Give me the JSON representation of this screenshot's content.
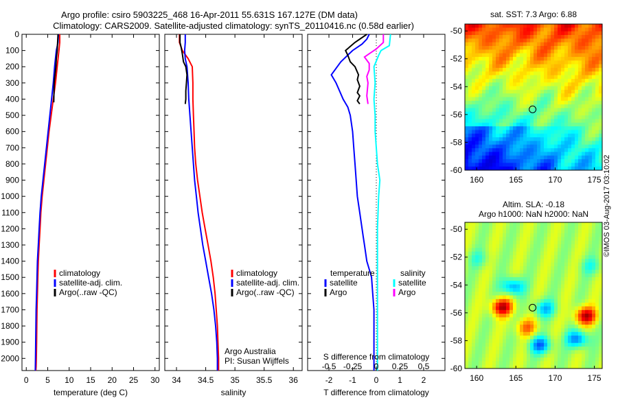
{
  "title": {
    "line1": "Argo profile: csiro 5903225_468 16-Apr-2011 55.631S 167.127E (DM data)",
    "line2": "Climatology: CARS2009. Satellite-adjusted climatology: synTS_20110416.nc (0.58d earlier)"
  },
  "side_text": "©IMOS 03-Aug-2017 03:10:02",
  "colors": {
    "climatology": "#ff0000",
    "satellite": "#0000ff",
    "argo": "#000000",
    "salinity_sat": "#00ffff",
    "salinity_argo": "#ff00ff"
  },
  "chart_data": [
    {
      "id": "temperature",
      "type": "line",
      "xlabel": "temperature (deg C)",
      "ylabel": "",
      "xlim": [
        -1,
        31
      ],
      "ylim": [
        2075,
        0
      ],
      "xticks": [
        0,
        5,
        10,
        15,
        20,
        25,
        30
      ],
      "yticks": [
        0,
        100,
        200,
        300,
        400,
        500,
        600,
        700,
        800,
        900,
        1000,
        1100,
        1200,
        1300,
        1400,
        1500,
        1600,
        1700,
        1800,
        1900,
        2000
      ],
      "legend": [
        "climatology",
        "satellite-adj. clim.",
        "Argo(..raw -QC)"
      ],
      "series": [
        {
          "name": "climatology",
          "color": "#ff0000",
          "x": [
            7.8,
            7.8,
            7.6,
            7.2,
            6.8,
            6.3,
            5.8,
            5.3,
            4.9,
            4.5,
            4.1,
            3.7,
            3.4,
            3.2,
            3.0,
            2.8,
            2.7,
            2.6,
            2.5,
            2.45,
            2.4,
            2.35,
            2.3,
            2.25,
            2.2
          ],
          "y": [
            0,
            50,
            100,
            200,
            300,
            400,
            500,
            600,
            700,
            800,
            900,
            1000,
            1100,
            1200,
            1300,
            1400,
            1500,
            1600,
            1700,
            1800,
            1900,
            2000,
            2050,
            2070,
            2075
          ]
        },
        {
          "name": "satellite-adj. clim.",
          "color": "#0000ff",
          "x": [
            7.5,
            7.4,
            7.0,
            6.6,
            6.3,
            5.9,
            5.5,
            5.1,
            4.7,
            4.3,
            3.9,
            3.5,
            3.2,
            3.0,
            2.8,
            2.6,
            2.5,
            2.4,
            2.3,
            2.25,
            2.2,
            2.15,
            2.1
          ],
          "y": [
            0,
            50,
            100,
            200,
            300,
            400,
            500,
            600,
            700,
            800,
            900,
            1000,
            1100,
            1200,
            1300,
            1400,
            1500,
            1600,
            1700,
            1800,
            1900,
            2000,
            2075
          ]
        },
        {
          "name": "Argo(..raw -QC)",
          "color": "#000000",
          "x": [
            7.4,
            7.3,
            7.2,
            7.0,
            6.9,
            6.7,
            6.5,
            6.4
          ],
          "y": [
            0,
            50,
            100,
            150,
            200,
            250,
            300,
            420
          ]
        }
      ]
    },
    {
      "id": "salinity",
      "type": "line",
      "xlabel": "salinity",
      "ylabel": "",
      "xlim": [
        33.8,
        36.15
      ],
      "ylim": [
        2075,
        0
      ],
      "xticks": [
        34,
        34.5,
        35,
        35.5,
        36
      ],
      "xticklabels": [
        "34",
        "34.5",
        "35",
        "35.5",
        "36"
      ],
      "legend": [
        "climatology",
        "satellite-adj. clim.",
        "Argo(..raw -QC)"
      ],
      "annotations": [
        "Argo Australia",
        "PI: Susan Wijffels"
      ],
      "series": [
        {
          "name": "climatology",
          "color": "#ff0000",
          "x": [
            34.05,
            34.05,
            34.1,
            34.2,
            34.27,
            34.28,
            34.28,
            34.29,
            34.3,
            34.31,
            34.33,
            34.36,
            34.4,
            34.44,
            34.49,
            34.54,
            34.59,
            34.63,
            34.66,
            34.68,
            34.7,
            34.71,
            34.72,
            34.72
          ],
          "y": [
            0,
            50,
            100,
            150,
            200,
            300,
            400,
            500,
            600,
            700,
            800,
            900,
            1000,
            1100,
            1200,
            1300,
            1400,
            1500,
            1600,
            1700,
            1800,
            1900,
            2000,
            2075
          ]
        },
        {
          "name": "satellite-adj. clim.",
          "color": "#0000ff",
          "x": [
            34.15,
            34.15,
            34.14,
            34.15,
            34.18,
            34.2,
            34.21,
            34.23,
            34.25,
            34.27,
            34.29,
            34.31,
            34.34,
            34.37,
            34.41,
            34.45,
            34.5,
            34.55,
            34.6,
            34.64,
            34.67,
            34.69,
            34.7,
            34.7
          ],
          "y": [
            0,
            50,
            100,
            150,
            200,
            300,
            400,
            500,
            600,
            700,
            800,
            900,
            1000,
            1100,
            1200,
            1300,
            1400,
            1500,
            1600,
            1700,
            1800,
            1900,
            2000,
            2075
          ]
        },
        {
          "name": "Argo(..raw -QC)",
          "color": "#000000",
          "x": [
            34.06,
            34.06,
            34.08,
            34.1,
            34.12,
            34.16,
            34.18,
            34.17,
            34.16,
            34.16,
            34.15
          ],
          "y": [
            0,
            50,
            80,
            120,
            170,
            200,
            250,
            300,
            350,
            400,
            430
          ]
        }
      ]
    },
    {
      "id": "difference",
      "type": "line",
      "xlabel": "T difference from climatology",
      "xlabel_top": "S difference from climatology",
      "xlim": [
        -2.9,
        2.9
      ],
      "ylim": [
        2075,
        0
      ],
      "xticks": [
        -2,
        -1,
        0,
        1,
        2
      ],
      "xticklabels": [
        "-2",
        "-1",
        "0",
        "1",
        "2"
      ],
      "s_ticks": [
        -0.5,
        -0.25,
        0,
        0.25,
        0.5
      ],
      "s_ticklabels": [
        "-0.5",
        "-0.25",
        "0",
        "0.25",
        "0.5"
      ],
      "legend_temperature_title": "temperature",
      "legend_salinity_title": "salinity",
      "legend": [
        "satellite",
        "Argo",
        "satellite",
        "Argo"
      ],
      "series": [
        {
          "name": "satellite",
          "quantity": "temperature",
          "color": "#0000ff",
          "x": [
            -0.3,
            -0.4,
            -0.6,
            -1.0,
            -1.5,
            -1.9,
            -1.7,
            -1.4,
            -1.2,
            -1.1,
            -1.0,
            -0.95,
            -0.9,
            -0.85,
            -0.8,
            -0.7,
            -0.6,
            -0.55,
            -0.5,
            -0.45,
            -0.4,
            -0.3,
            -0.2,
            -0.15,
            -0.1,
            -0.1,
            -0.1,
            -0.1,
            -0.1,
            -0.1
          ],
          "y": [
            0,
            30,
            60,
            100,
            170,
            250,
            300,
            400,
            450,
            500,
            600,
            700,
            800,
            900,
            1000,
            1100,
            1200,
            1250,
            1300,
            1350,
            1400,
            1450,
            1500,
            1600,
            1700,
            1800,
            1900,
            2000,
            2050,
            2075
          ]
        },
        {
          "name": "Argo",
          "quantity": "temperature",
          "color": "#000000",
          "x": [
            -0.4,
            -0.9,
            -1.3,
            -1.2,
            -1.1,
            -0.9,
            -0.75,
            -0.8,
            -0.7,
            -0.8,
            -0.7,
            -0.8,
            -0.7
          ],
          "y": [
            0,
            50,
            100,
            130,
            170,
            200,
            250,
            280,
            320,
            360,
            380,
            410,
            430
          ]
        },
        {
          "name": "satellite",
          "quantity": "salinity",
          "color": "#00ffff",
          "x": [
            0.6,
            0.55,
            0.2,
            0.1,
            -0.1,
            -0.05,
            -0.1,
            -0.05,
            -0.05,
            0.0,
            0.05,
            0.15,
            0.1,
            0.05,
            0.05,
            0.05,
            0.05,
            0.05
          ],
          "y": [
            0,
            70,
            100,
            130,
            200,
            300,
            400,
            500,
            600,
            700,
            800,
            900,
            1000,
            1200,
            1400,
            1600,
            1800,
            2075
          ]
        },
        {
          "name": "Argo",
          "quantity": "salinity",
          "color": "#ff00ff",
          "x": [
            0.3,
            0.3,
            0.0,
            -0.3,
            -0.5,
            -0.3,
            -0.3,
            -0.4,
            -0.35,
            -0.4,
            -0.35
          ],
          "y": [
            0,
            50,
            90,
            120,
            140,
            180,
            220,
            260,
            300,
            380,
            430
          ]
        }
      ]
    },
    {
      "id": "sst_map",
      "type": "heatmap",
      "title": "sat. SST: 7.3 Argo: 6.88",
      "xlim": [
        158.5,
        176
      ],
      "ylim": [
        -60,
        -49.5
      ],
      "xticks": [
        160,
        165,
        170,
        175
      ],
      "yticks": [
        -50,
        -52,
        -54,
        -56,
        -58,
        -60
      ],
      "yticklabels": [
        "-50",
        "-52",
        "-54",
        "-56",
        "-58",
        "-60"
      ],
      "profile_marker": {
        "lon": 167.127,
        "lat": -55.631
      }
    },
    {
      "id": "sla_map",
      "type": "heatmap",
      "title": "Altim. SLA: -0.18",
      "subtitle": "Argo h1000: NaN h2000: NaN",
      "xlim": [
        158.5,
        176
      ],
      "ylim": [
        -60,
        -49.5
      ],
      "xticks": [
        160,
        165,
        170,
        175
      ],
      "yticks": [
        -50,
        -52,
        -54,
        -56,
        -58,
        -60
      ],
      "yticklabels": [
        "-50",
        "-52",
        "-54",
        "-56",
        "-58",
        "-60"
      ],
      "profile_marker": {
        "lon": 167.127,
        "lat": -55.631
      }
    }
  ]
}
